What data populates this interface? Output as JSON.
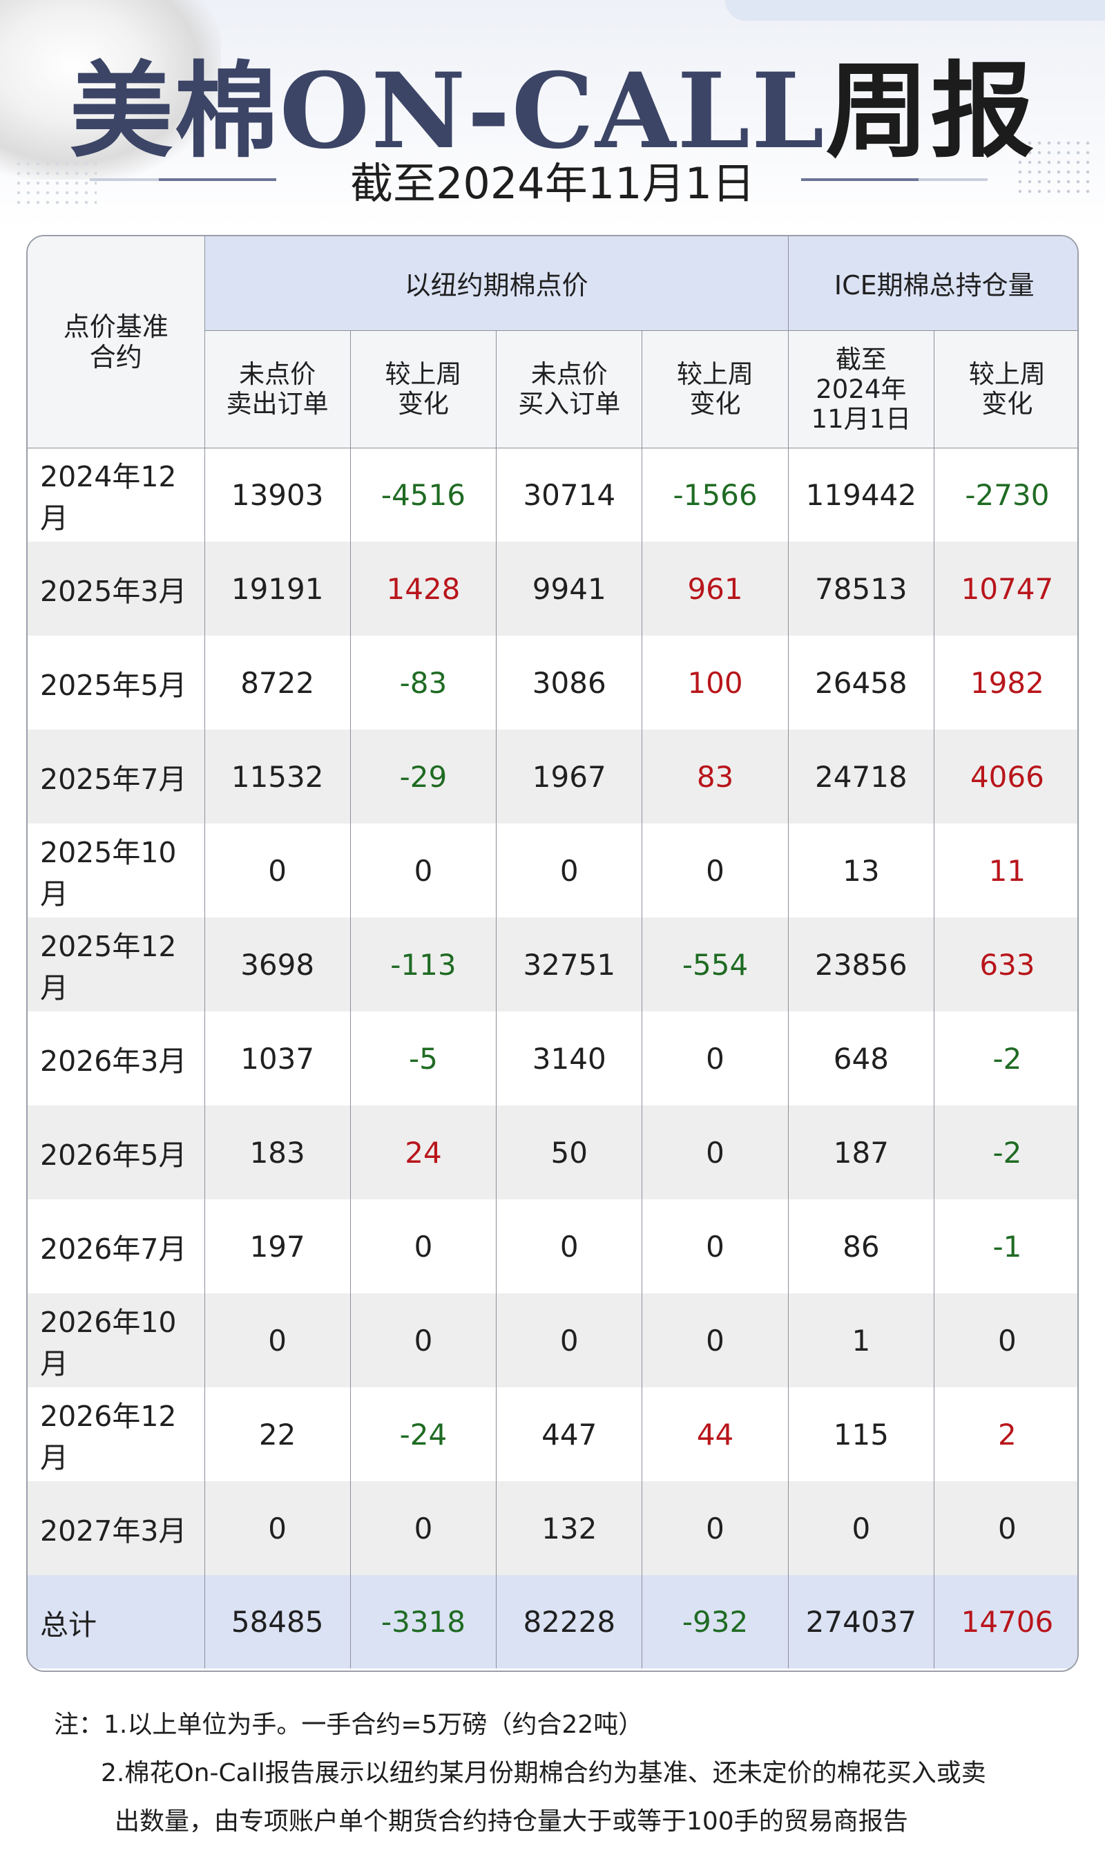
{
  "header": {
    "title_part1": "美棉",
    "title_part2": "ON-CALL",
    "title_part3": "周报",
    "subtitle": "截至2024年11月1日"
  },
  "table": {
    "corner_label": "点价基准\n合约",
    "group1_label": "以纽约期棉点价",
    "group2_label": "ICE期棉总持仓量",
    "subheaders": [
      "未点价\n卖出订单",
      "较上周\n变化",
      "未点价\n买入订单",
      "较上周\n变化",
      "截至\n2024年\n11月1日",
      "较上周\n变化"
    ],
    "rows": [
      {
        "contract": "2024年12月",
        "sell": "13903",
        "sell_chg": "-4516",
        "buy": "30714",
        "buy_chg": "-1566",
        "oi": "119442",
        "oi_chg": "-2730"
      },
      {
        "contract": "2025年3月",
        "sell": "19191",
        "sell_chg": "1428",
        "buy": "9941",
        "buy_chg": "961",
        "oi": "78513",
        "oi_chg": "10747"
      },
      {
        "contract": "2025年5月",
        "sell": "8722",
        "sell_chg": "-83",
        "buy": "3086",
        "buy_chg": "100",
        "oi": "26458",
        "oi_chg": "1982"
      },
      {
        "contract": "2025年7月",
        "sell": "11532",
        "sell_chg": "-29",
        "buy": "1967",
        "buy_chg": "83",
        "oi": "24718",
        "oi_chg": "4066"
      },
      {
        "contract": "2025年10月",
        "sell": "0",
        "sell_chg": "0",
        "buy": "0",
        "buy_chg": "0",
        "oi": "13",
        "oi_chg": "11"
      },
      {
        "contract": "2025年12月",
        "sell": "3698",
        "sell_chg": "-113",
        "buy": "32751",
        "buy_chg": "-554",
        "oi": "23856",
        "oi_chg": "633"
      },
      {
        "contract": "2026年3月",
        "sell": "1037",
        "sell_chg": "-5",
        "buy": "3140",
        "buy_chg": "0",
        "oi": "648",
        "oi_chg": "-2"
      },
      {
        "contract": "2026年5月",
        "sell": "183",
        "sell_chg": "24",
        "buy": "50",
        "buy_chg": "0",
        "oi": "187",
        "oi_chg": "-2"
      },
      {
        "contract": "2026年7月",
        "sell": "197",
        "sell_chg": "0",
        "buy": "0",
        "buy_chg": "0",
        "oi": "86",
        "oi_chg": "-1"
      },
      {
        "contract": "2026年10月",
        "sell": "0",
        "sell_chg": "0",
        "buy": "0",
        "buy_chg": "0",
        "oi": "1",
        "oi_chg": "0"
      },
      {
        "contract": "2026年12月",
        "sell": "22",
        "sell_chg": "-24",
        "buy": "447",
        "buy_chg": "44",
        "oi": "115",
        "oi_chg": "2"
      },
      {
        "contract": "2027年3月",
        "sell": "0",
        "sell_chg": "0",
        "buy": "132",
        "buy_chg": "0",
        "oi": "0",
        "oi_chg": "0"
      }
    ],
    "total": {
      "contract": "总计",
      "sell": "58485",
      "sell_chg": "-3318",
      "buy": "82228",
      "buy_chg": "-932",
      "oi": "274037",
      "oi_chg": "14706"
    }
  },
  "notes": {
    "line1": "注：1.以上单位为手。一手合约=5万磅（约合22吨）",
    "line2": "2.棉花On-Call报告展示以纽约某月份期棉合约为基准、还未定价的棉花买入或卖",
    "line3": "出数量，由专项账户单个期货合约持仓量大于或等于100手的贸易商报告"
  },
  "colors": {
    "title": "#3c4566",
    "header_band": "#dbe2f4",
    "negative": "#1f6b23",
    "positive": "#b8151b"
  }
}
